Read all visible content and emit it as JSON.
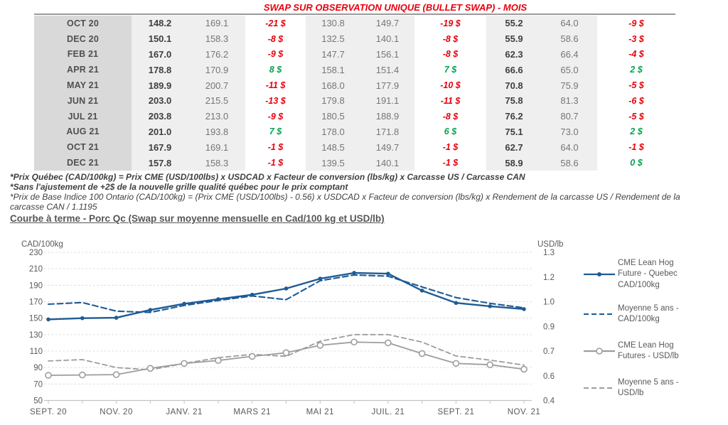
{
  "title": "SWAP SUR OBSERVATION UNIQUE (BULLET SWAP) - MOIS",
  "colors": {
    "title_red": "#e8000d",
    "negative": "#e8000d",
    "positive": "#00a550",
    "blue_line": "#1e5b94",
    "gray_line": "#9d9d9d",
    "axis_text": "#595959"
  },
  "table": {
    "rows": [
      [
        "OCT 20",
        "148.2",
        "169.1",
        "-21 $",
        "130.8",
        "149.7",
        "-19 $",
        "55.2",
        "64.0",
        "-9 $"
      ],
      [
        "DEC 20",
        "150.1",
        "158.3",
        "-8 $",
        "132.5",
        "140.1",
        "-8 $",
        "55.9",
        "58.6",
        "-3 $"
      ],
      [
        "FEB 21",
        "167.0",
        "176.2",
        "-9 $",
        "147.7",
        "156.1",
        "-8 $",
        "62.3",
        "66.4",
        "-4 $"
      ],
      [
        "APR 21",
        "178.8",
        "170.9",
        "8 $",
        "158.1",
        "151.4",
        "7 $",
        "66.6",
        "65.0",
        "2 $"
      ],
      [
        "MAY 21",
        "189.9",
        "200.7",
        "-11 $",
        "168.0",
        "177.9",
        "-10 $",
        "70.8",
        "75.9",
        "-5 $"
      ],
      [
        "JUN 21",
        "203.0",
        "215.5",
        "-13 $",
        "179.8",
        "191.1",
        "-11 $",
        "75.8",
        "81.3",
        "-6 $"
      ],
      [
        "JUL 21",
        "203.8",
        "213.0",
        "-9 $",
        "180.5",
        "188.9",
        "-8 $",
        "76.2",
        "80.7",
        "-5 $"
      ],
      [
        "AUG 21",
        "201.0",
        "193.8",
        "7 $",
        "178.0",
        "171.8",
        "6 $",
        "75.1",
        "73.0",
        "2 $"
      ],
      [
        "OCT 21",
        "167.9",
        "169.1",
        "-1 $",
        "148.5",
        "149.7",
        "-1 $",
        "62.7",
        "64.0",
        "-1 $"
      ],
      [
        "DEC 21",
        "157.8",
        "158.3",
        "-1 $",
        "139.5",
        "140.1",
        "-1 $",
        "58.9",
        "58.6",
        "0 $"
      ]
    ]
  },
  "footnotes": [
    {
      "text": "*Prix Québec (CAD/100kg) = Prix CME (USD/100lbs) x USDCAD x Facteur de conversion (lbs/kg) x Carcasse US / Carcasse CAN",
      "bold": true
    },
    {
      "text": "*Sans l'ajustement de +2$ de la nouvelle grille qualité québec pour le prix comptant",
      "bold": true
    },
    {
      "text": "*Prix de Base Indice 100 Ontario (CAD/100kg) = (Prix CME (USD/100lbs) - 0.56) x USDCAD x Facteur de conversion (lbs/kg) x Rendement de la carcasse US / Rendement de la",
      "bold": false
    },
    {
      "text": "carcasse CAN / 1.1195",
      "bold": false
    }
  ],
  "section_title": "Courbe à terme - Porc Qc (Swap sur moyenne mensuelle en Cad/100 kg et USD/lb)",
  "chart_data": {
    "type": "line",
    "n_points": 15,
    "x_labels_visible": [
      "SEPT. 20",
      "NOV. 20",
      "JANV. 21",
      "MARS 21",
      "MAI 21",
      "JUIL. 21",
      "SEPT. 21",
      "NOV. 21"
    ],
    "left_axis": {
      "title": "CAD/100kg",
      "min": 50,
      "max": 230,
      "tick_labels": [
        "230",
        "210",
        "190",
        "170",
        "150",
        "130",
        "110",
        "90",
        "70",
        "50"
      ]
    },
    "right_axis": {
      "title": "USD/lb",
      "min": 0.4,
      "max": 1.3,
      "tick_labels": [
        "1.3",
        "1.2",
        "1.0",
        "0.9",
        "0.7",
        "0.6",
        "0.4"
      ]
    },
    "grid": true,
    "legend_position": "right",
    "series": [
      {
        "name": "CME Lean Hog Future - Quebec CAD/100kg",
        "axis": "left",
        "line": "solid",
        "marker": "filled-dot",
        "color": "#1e5b94",
        "values": [
          148.5,
          150,
          150.5,
          160,
          167.5,
          173,
          178.5,
          186,
          198,
          205,
          204,
          183.5,
          168.5,
          164.5,
          161
        ]
      },
      {
        "name": "Moyenne 5 ans - CAD/100kg",
        "axis": "left",
        "line": "dashed",
        "marker": "none",
        "color": "#1e5b94",
        "values": [
          167,
          169,
          158.5,
          157,
          165.5,
          171.5,
          177,
          172.5,
          195.5,
          202.5,
          201,
          188,
          175,
          168,
          162.5
        ]
      },
      {
        "name": "CME Lean Hog Futures - USD/lb",
        "axis": "right",
        "line": "solid",
        "marker": "open-circle",
        "color": "#9d9d9d",
        "values": [
          0.553,
          0.555,
          0.557,
          0.595,
          0.625,
          0.643,
          0.668,
          0.69,
          0.735,
          0.755,
          0.75,
          0.685,
          0.625,
          0.617,
          0.59
        ]
      },
      {
        "name": "Moyenne 5 ans - USD/lb",
        "axis": "right",
        "line": "dashed",
        "marker": "none",
        "color": "#9d9d9d",
        "values": [
          0.64,
          0.648,
          0.6,
          0.586,
          0.625,
          0.66,
          0.68,
          0.668,
          0.76,
          0.8,
          0.8,
          0.755,
          0.67,
          0.645,
          0.615
        ]
      }
    ],
    "legend": [
      {
        "lines": [
          "CME Lean Hog",
          "Future - Quebec",
          "CAD/100kg"
        ],
        "series": 0
      },
      {
        "lines": [
          "Moyenne 5 ans -",
          "CAD/100kg"
        ],
        "series": 1
      },
      {
        "lines": [
          "CME Lean Hog",
          "Futures - USD/lb"
        ],
        "series": 2
      },
      {
        "lines": [
          "Moyenne 5 ans -",
          "USD/lb"
        ],
        "series": 3
      }
    ]
  }
}
